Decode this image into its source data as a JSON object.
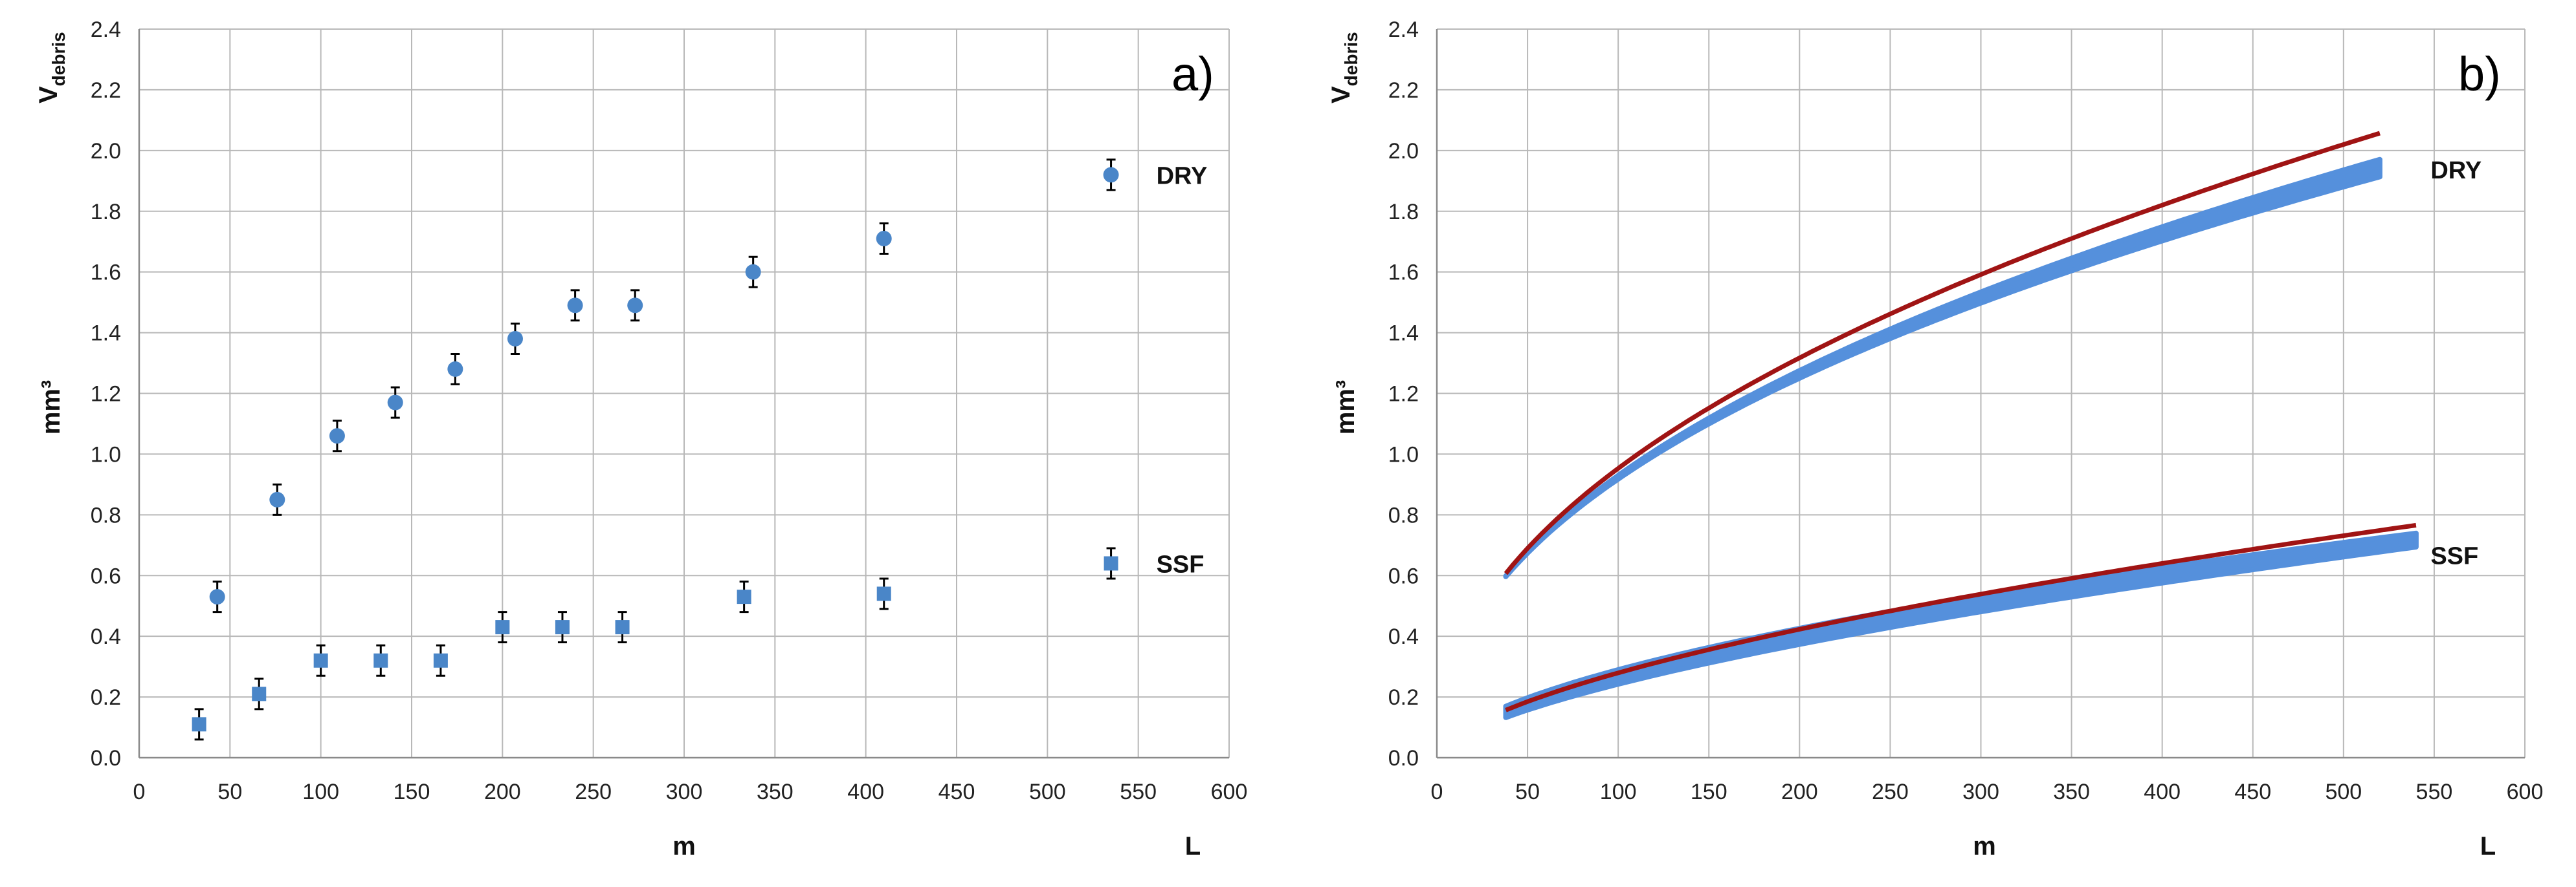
{
  "chart_data": [
    {
      "type": "scatter",
      "panel_label": "a)",
      "ylabel": "V",
      "ylabel_sub": "debris",
      "yunit": "mm³",
      "xlabel": "m",
      "xlabel_right": "L",
      "xlim": [
        0,
        600
      ],
      "ylim": [
        0,
        2.4
      ],
      "xticks": [
        0,
        50,
        100,
        150,
        200,
        250,
        300,
        350,
        400,
        450,
        500,
        550,
        600
      ],
      "yticks": [
        "0.0",
        "0.2",
        "0.4",
        "0.6",
        "0.8",
        "1.0",
        "1.2",
        "1.4",
        "1.6",
        "1.8",
        "2.0",
        "2.2",
        "2.4"
      ],
      "grid": true,
      "series": [
        {
          "name": "DRY",
          "marker": "circle",
          "color": "#4a86c8",
          "error": 0.05,
          "x": [
            43,
            76,
            109,
            141,
            174,
            207,
            240,
            273,
            338,
            410
          ],
          "y": [
            0.53,
            0.85,
            1.06,
            1.17,
            1.28,
            1.38,
            1.49,
            1.49,
            1.6,
            1.71
          ]
        },
        {
          "name": "SSF",
          "marker": "square",
          "color": "#4a86c8",
          "error": 0.05,
          "x": [
            33,
            66,
            100,
            133,
            166,
            200,
            233,
            266,
            333,
            410
          ],
          "y": [
            0.11,
            0.21,
            0.32,
            0.32,
            0.32,
            0.43,
            0.43,
            0.43,
            0.53,
            0.54
          ]
        }
      ],
      "legend": [
        {
          "name": "DRY",
          "marker": "circle",
          "x": 535,
          "y": 1.92
        },
        {
          "name": "SSF",
          "marker": "square",
          "x": 535,
          "y": 0.64
        }
      ]
    },
    {
      "type": "line",
      "panel_label": "b)",
      "ylabel": "V",
      "ylabel_sub": "debris",
      "yunit": "mm³",
      "xlabel": "m",
      "xlabel_right": "L",
      "xlim": [
        0,
        600
      ],
      "ylim": [
        0,
        2.4
      ],
      "xticks": [
        0,
        50,
        100,
        150,
        200,
        250,
        300,
        350,
        400,
        450,
        500,
        550,
        600
      ],
      "yticks": [
        "0.0",
        "0.2",
        "0.4",
        "0.6",
        "0.8",
        "1.0",
        "1.2",
        "1.4",
        "1.6",
        "1.8",
        "2.0",
        "2.2",
        "2.4"
      ],
      "grid": true,
      "series": [
        {
          "name": "DRY",
          "label": "DRY",
          "band_color": "#5590dc",
          "line_color": "#a01414",
          "band_x_range": [
            38,
            520
          ],
          "band_lower": {
            "a": 0.118,
            "b": 0.4455
          },
          "band_upper": {
            "a": 0.114,
            "b": 0.4557
          },
          "line": {
            "a": 0.1111,
            "b": 0.4667,
            "x_range": [
              38,
              520
            ]
          }
        },
        {
          "name": "SSF",
          "label": "SSF",
          "band_color": "#5590dc",
          "line_color": "#a01414",
          "band_x_range": [
            38,
            540
          ],
          "band_lower": {
            "a": 0.0137,
            "b": 0.6239
          },
          "band_upper": {
            "a": 0.0224,
            "b": 0.5558
          },
          "line": {
            "a": 0.0178,
            "b": 0.5979,
            "x_range": [
              38,
              540
            ]
          }
        }
      ]
    }
  ]
}
